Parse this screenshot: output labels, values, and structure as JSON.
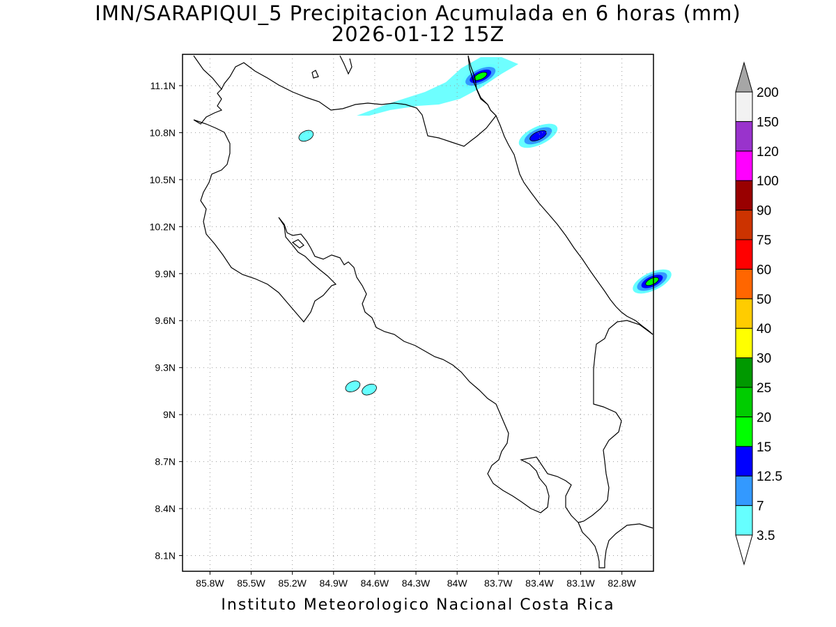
{
  "title": {
    "line1": "IMN/SARAPIQUI_5 Precipitacion Acumulada en 6 horas (mm)",
    "line2": "2026-01-12 15Z"
  },
  "footer": "Instituto Meteorologico Nacional Costa Rica",
  "map": {
    "lon_labels": [
      "85.8W",
      "85.5W",
      "85.2W",
      "84.9W",
      "84.6W",
      "84.3W",
      "84W",
      "83.7W",
      "83.4W",
      "83.1W",
      "82.8W"
    ],
    "lat_labels": [
      "11.1N",
      "10.8N",
      "10.5N",
      "10.2N",
      "9.9N",
      "9.6N",
      "9.3N",
      "9N",
      "8.7N",
      "8.4N",
      "8.1N"
    ],
    "extent": {
      "lon_min": -86.0,
      "lon_max": -82.57,
      "lat_min": 8.0,
      "lat_max": 11.3
    },
    "grid": "dotted",
    "precipitation_cells": [
      {
        "lon": -83.83,
        "lat": 11.16,
        "value": 17
      },
      {
        "lon": -83.41,
        "lat": 10.78,
        "value": 13
      },
      {
        "lon": -82.58,
        "lat": 9.85,
        "value": 16
      },
      {
        "lon": -85.1,
        "lat": 10.78,
        "value": 5
      },
      {
        "lon": -84.76,
        "lat": 9.18,
        "value": 5
      },
      {
        "lon": -84.64,
        "lat": 9.16,
        "value": 5
      }
    ]
  },
  "legend": {
    "levels": [
      "3.5",
      "7",
      "12.5",
      "15",
      "20",
      "25",
      "30",
      "40",
      "50",
      "60",
      "75",
      "90",
      "100",
      "120",
      "150",
      "200"
    ],
    "colors": [
      "#ffffff",
      "#66ffff",
      "#3399ff",
      "#0000ff",
      "#00ff00",
      "#00cc00",
      "#009900",
      "#ffff00",
      "#ffcc00",
      "#ff6600",
      "#ff0000",
      "#cc3300",
      "#990000",
      "#ff00ff",
      "#9933cc",
      "#f2f2f2",
      "#a6a6a6"
    ]
  }
}
